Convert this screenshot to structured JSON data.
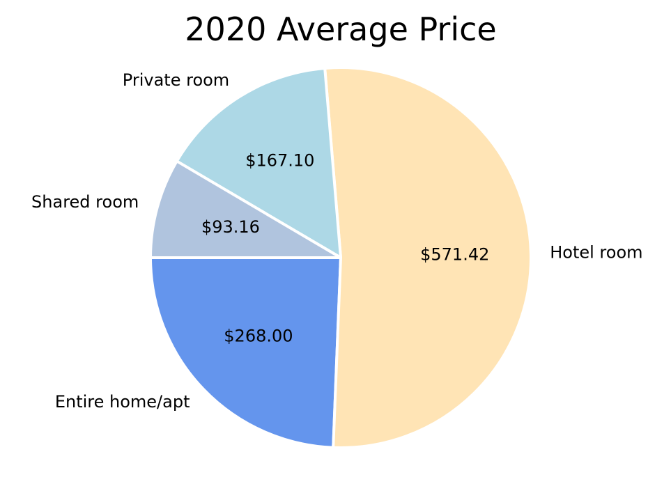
{
  "chart_data": {
    "type": "pie",
    "title": "2020 Average Price",
    "categories": [
      "Entire home/apt",
      "Hotel room",
      "Private room",
      "Shared room"
    ],
    "values": [
      268.0,
      571.42,
      167.1,
      93.16
    ],
    "value_labels": [
      "$268.00",
      "$571.42",
      "$167.10",
      "$93.16"
    ],
    "colors": [
      "#6495ED",
      "#FFE4B5",
      "#ADD8E6",
      "#B0C4DE"
    ],
    "start_angle_deg": 180,
    "direction": "counterclockwise",
    "edge_color": "#ffffff",
    "legend": "none"
  }
}
